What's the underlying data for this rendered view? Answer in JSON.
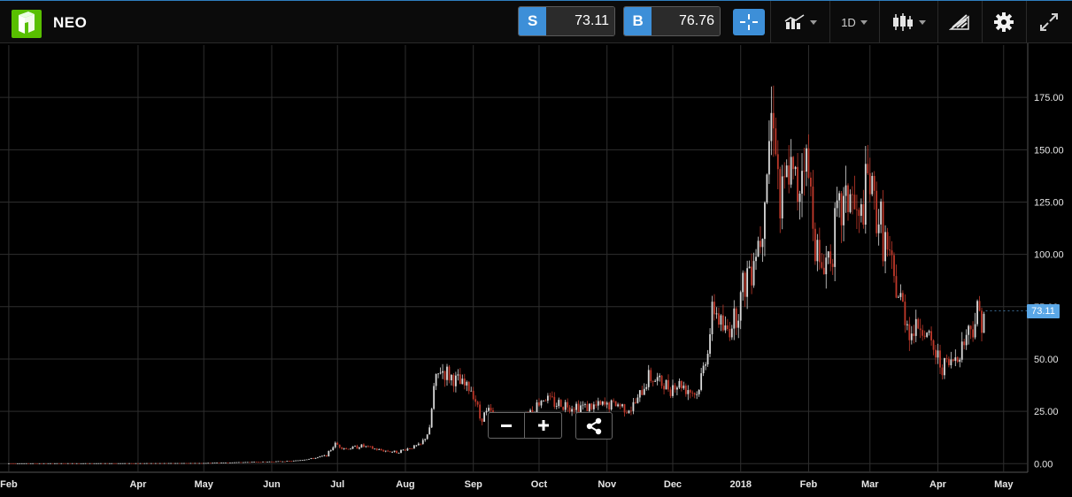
{
  "header": {
    "symbol": "NEO",
    "sell_tag": "S",
    "sell_value": "73.11",
    "buy_tag": "B",
    "buy_value": "76.76",
    "interval": "1D"
  },
  "icons": [
    "neo-logo",
    "crosshair-icon",
    "chart-type-icon",
    "candlestick-icon",
    "drawing-tools-icon",
    "gear-icon",
    "expand-icon",
    "zoom-out-icon",
    "zoom-in-icon",
    "share-icon"
  ],
  "colors": {
    "accent": "#3d8fd8",
    "logo": "#58bf00",
    "up": "#d9d9d9",
    "down": "#c0392b",
    "last_price": "#5aa7e6",
    "grid": "#2e2e2e"
  },
  "last_price_label": "73.11",
  "chart_data": {
    "type": "candlestick",
    "y_ticks": [
      "0.00",
      "25.00",
      "50.00",
      "75.00",
      "100.00",
      "125.00",
      "150.00",
      "175.00"
    ],
    "y_tick_values": [
      0,
      25,
      50,
      75,
      100,
      125,
      150,
      175
    ],
    "x_ticks": [
      "Feb",
      "Apr",
      "May",
      "Jun",
      "Jul",
      "Aug",
      "Sep",
      "Oct",
      "Nov",
      "Dec",
      "2018",
      "Feb",
      "Mar",
      "Apr",
      "May"
    ],
    "x_tick_dates": [
      "2017-02-01",
      "2017-04-01",
      "2017-05-01",
      "2017-06-01",
      "2017-07-01",
      "2017-08-01",
      "2017-09-01",
      "2017-10-01",
      "2017-11-01",
      "2017-12-01",
      "2018-01-01",
      "2018-02-01",
      "2018-03-01",
      "2018-04-01",
      "2018-05-01"
    ],
    "ylim": [
      -2,
      200
    ],
    "xlim": [
      "2017-01-28",
      "2018-05-12"
    ],
    "grid": true,
    "last_price": 73.11,
    "close_series": [
      [
        "2017-02-01",
        0.15
      ],
      [
        "2017-04-01",
        0.2
      ],
      [
        "2017-05-01",
        0.3
      ],
      [
        "2017-06-01",
        1.0
      ],
      [
        "2017-06-10",
        1.2
      ],
      [
        "2017-06-20",
        2.5
      ],
      [
        "2017-06-26",
        4.0
      ],
      [
        "2017-06-30",
        9.5
      ],
      [
        "2017-07-05",
        7.0
      ],
      [
        "2017-07-12",
        8.5
      ],
      [
        "2017-07-20",
        6.5
      ],
      [
        "2017-07-28",
        5.5
      ],
      [
        "2017-08-03",
        7.5
      ],
      [
        "2017-08-08",
        9.0
      ],
      [
        "2017-08-12",
        16.0
      ],
      [
        "2017-08-14",
        36.0
      ],
      [
        "2017-08-17",
        45.0
      ],
      [
        "2017-08-21",
        42.0
      ],
      [
        "2017-08-26",
        38.0
      ],
      [
        "2017-09-01",
        35.0
      ],
      [
        "2017-09-04",
        22.0
      ],
      [
        "2017-09-08",
        25.0
      ],
      [
        "2017-09-15",
        18.0
      ],
      [
        "2017-09-22",
        21.0
      ],
      [
        "2017-09-30",
        28.0
      ],
      [
        "2017-10-03",
        32.0
      ],
      [
        "2017-10-08",
        29.0
      ],
      [
        "2017-10-15",
        28.0
      ],
      [
        "2017-10-25",
        27.0
      ],
      [
        "2017-11-05",
        28.5
      ],
      [
        "2017-11-12",
        26.0
      ],
      [
        "2017-11-16",
        32.0
      ],
      [
        "2017-11-20",
        42.0
      ],
      [
        "2017-11-28",
        37.0
      ],
      [
        "2017-12-05",
        38.0
      ],
      [
        "2017-12-12",
        33.0
      ],
      [
        "2017-12-15",
        45.0
      ],
      [
        "2017-12-20",
        75.0
      ],
      [
        "2017-12-25",
        62.0
      ],
      [
        "2017-12-30",
        72.0
      ],
      [
        "2018-01-05",
        95.0
      ],
      [
        "2018-01-10",
        110.0
      ],
      [
        "2018-01-13",
        145.0
      ],
      [
        "2018-01-16",
        175.0
      ],
      [
        "2018-01-19",
        120.0
      ],
      [
        "2018-01-23",
        140.0
      ],
      [
        "2018-01-27",
        130.0
      ],
      [
        "2018-01-30",
        152.0
      ],
      [
        "2018-02-03",
        120.0
      ],
      [
        "2018-02-06",
        92.0
      ],
      [
        "2018-02-10",
        100.0
      ],
      [
        "2018-02-15",
        118.0
      ],
      [
        "2018-02-20",
        130.0
      ],
      [
        "2018-02-24",
        112.0
      ],
      [
        "2018-02-28",
        135.0
      ],
      [
        "2018-03-03",
        125.0
      ],
      [
        "2018-03-07",
        110.0
      ],
      [
        "2018-03-12",
        85.0
      ],
      [
        "2018-03-16",
        75.0
      ],
      [
        "2018-03-20",
        62.0
      ],
      [
        "2018-03-24",
        68.0
      ],
      [
        "2018-03-28",
        58.0
      ],
      [
        "2018-04-02",
        48.0
      ],
      [
        "2018-04-06",
        47.0
      ],
      [
        "2018-04-10",
        52.0
      ],
      [
        "2018-04-14",
        62.0
      ],
      [
        "2018-04-19",
        71.0
      ],
      [
        "2018-04-22",
        73.11
      ]
    ]
  },
  "zoom": {
    "out": "−",
    "in": "+"
  }
}
